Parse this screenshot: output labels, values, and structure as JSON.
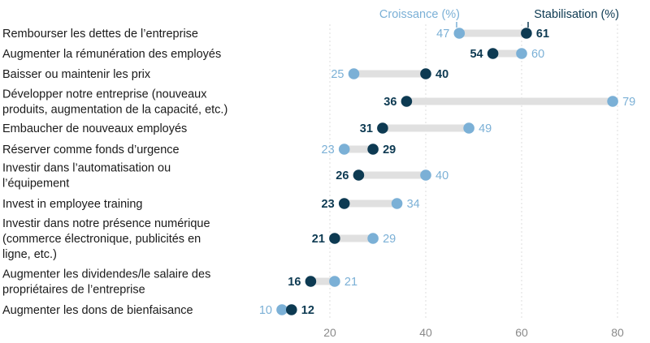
{
  "chart_data": {
    "type": "dumbbell",
    "title": "",
    "xlabel": "",
    "ylabel": "",
    "xlim": [
      10,
      80
    ],
    "xticks": [
      20,
      40,
      60,
      80
    ],
    "grid": true,
    "legend_placement": "top-right",
    "series": [
      {
        "name": "Croissance (%)",
        "color": "#7bb0d6"
      },
      {
        "name": "Stabilisation (%)",
        "color": "#0d3a52"
      }
    ],
    "categories": [
      {
        "label": [
          "Rembourser les dettes de l’entreprise"
        ],
        "croissance": 47,
        "stabilisation": 61
      },
      {
        "label": [
          "Augmenter la rémunération des employés"
        ],
        "croissance": 60,
        "stabilisation": 54
      },
      {
        "label": [
          "Baisser ou maintenir les prix"
        ],
        "croissance": 25,
        "stabilisation": 40
      },
      {
        "label": [
          "Développer notre entreprise (nouveaux",
          "produits, augmentation de la capacité, etc.)"
        ],
        "croissance": 79,
        "stabilisation": 36
      },
      {
        "label": [
          "Embaucher de nouveaux employés"
        ],
        "croissance": 49,
        "stabilisation": 31
      },
      {
        "label": [
          "Réserver comme fonds d’urgence"
        ],
        "croissance": 23,
        "stabilisation": 29
      },
      {
        "label": [
          "Investir dans l’automatisation ou",
          "l’équipement"
        ],
        "croissance": 40,
        "stabilisation": 26
      },
      {
        "label": [
          "Invest in employee training"
        ],
        "croissance": 34,
        "stabilisation": 23
      },
      {
        "label": [
          "Investir dans notre présence numérique",
          "(commerce électronique, publicités en",
          "ligne, etc.)"
        ],
        "croissance": 29,
        "stabilisation": 21
      },
      {
        "label": [
          "Augmenter les dividendes/le salaire des",
          "propriétaires de l’entreprise"
        ],
        "croissance": 21,
        "stabilisation": 16
      },
      {
        "label": [
          "Augmenter les dons de bienfaisance"
        ],
        "croissance": 10,
        "stabilisation": 12
      }
    ]
  }
}
